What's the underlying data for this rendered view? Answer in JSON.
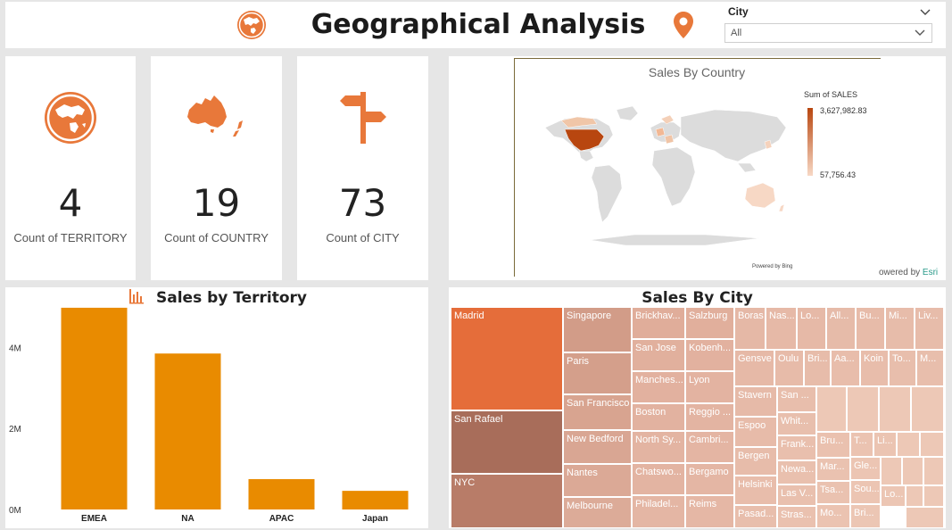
{
  "header": {
    "title": "Geographical Analysis",
    "slicer_label": "City",
    "slicer_value": "All"
  },
  "kpis": [
    {
      "value": "4",
      "label": "Count of TERRITORY",
      "icon": "globe-icon"
    },
    {
      "value": "19",
      "label": "Count of COUNTRY",
      "icon": "australia-map-icon"
    },
    {
      "value": "73",
      "label": "Count of CITY",
      "icon": "signpost-icon"
    }
  ],
  "map": {
    "title": "Sales By Country",
    "legend_title": "Sum of SALES",
    "legend_max": "3,627,982.83",
    "legend_min": "57,756.43",
    "credit_bing": "Powered by Bing",
    "credit_esri_prefix": "owered by",
    "credit_esri_brand": "Esri"
  },
  "colors": {
    "accent": "#e98b00",
    "icon_orange": "#e8783a",
    "map_dark": "#b8460f",
    "map_light": "#f7d8c5"
  },
  "chart_data": {
    "type": "bar",
    "title": "Sales by Territory",
    "categories": [
      "EMEA",
      "NA",
      "APAC",
      "Japan"
    ],
    "values": [
      4980000,
      3850000,
      750000,
      460000
    ],
    "ytick_labels": [
      "0M",
      "2M",
      "4M"
    ],
    "ytick_values": [
      0,
      2000000,
      4000000
    ],
    "ylim": [
      0,
      5000000
    ],
    "color": "#e98b00"
  },
  "treemap": {
    "title": "Sales By City",
    "cells": [
      {
        "label": "Madrid",
        "color": "#e56d3a"
      },
      {
        "label": "San Rafael",
        "color": "#a86d5a"
      },
      {
        "label": "NYC",
        "color": "#b87c68"
      },
      {
        "label": "Singapore",
        "color": "#d29c88"
      },
      {
        "label": "Paris",
        "color": "#d49f8b"
      },
      {
        "label": "San Francisco",
        "color": "#d8a490"
      },
      {
        "label": "New Bedford",
        "color": "#d9a693"
      },
      {
        "label": "Nantes",
        "color": "#dba996"
      },
      {
        "label": "Melbourne",
        "color": "#dcab98"
      },
      {
        "label": "Brickhav...",
        "color": "#e0ad9a"
      },
      {
        "label": "San Jose",
        "color": "#e1b09d"
      },
      {
        "label": "Manches...",
        "color": "#e2b19f"
      },
      {
        "label": "Boston",
        "color": "#e2b2a0"
      },
      {
        "label": "North Sy...",
        "color": "#e3b4a2"
      },
      {
        "label": "Chatswo...",
        "color": "#e3b4a2"
      },
      {
        "label": "Philadel...",
        "color": "#e4b6a4"
      },
      {
        "label": "Salzburg",
        "color": "#e1af9c"
      },
      {
        "label": "Kobenh...",
        "color": "#e2b19f"
      },
      {
        "label": "Lyon",
        "color": "#e3b3a1"
      },
      {
        "label": "Reggio ...",
        "color": "#e3b4a2"
      },
      {
        "label": "Cambri...",
        "color": "#e4b5a3"
      },
      {
        "label": "Bergamo",
        "color": "#e4b6a4"
      },
      {
        "label": "Reims",
        "color": "#e5b7a5"
      },
      {
        "label": "Boras",
        "color": "#e5b8a6"
      },
      {
        "label": "Nas...",
        "color": "#e6b9a7"
      },
      {
        "label": "Lo...",
        "color": "#e6b9a7"
      },
      {
        "label": "All...",
        "color": "#e6bba9"
      },
      {
        "label": "Bu...",
        "color": "#e7bba9"
      },
      {
        "label": "Mi...",
        "color": "#e7bcaa"
      },
      {
        "label": "Liv...",
        "color": "#e7bcaa"
      },
      {
        "label": "Gensve",
        "color": "#e6b9a7"
      },
      {
        "label": "Oulu",
        "color": "#e7bba9"
      },
      {
        "label": "Bri...",
        "color": "#e7bcaa"
      },
      {
        "label": "Aa...",
        "color": "#e8bdab"
      },
      {
        "label": "Koin",
        "color": "#e8bdab"
      },
      {
        "label": "To...",
        "color": "#e8beac"
      },
      {
        "label": "M...",
        "color": "#e8beac"
      },
      {
        "label": "Stavern",
        "color": "#e6baa8"
      },
      {
        "label": "Espoo",
        "color": "#e7bba9"
      },
      {
        "label": "Bergen",
        "color": "#e7bcaa"
      },
      {
        "label": "Helsinki",
        "color": "#e8bdab"
      },
      {
        "label": "Pasad...",
        "color": "#e8beac"
      },
      {
        "label": "San ...",
        "color": "#e8beac"
      },
      {
        "label": "Whit...",
        "color": "#e8bfad"
      },
      {
        "label": "Frank...",
        "color": "#e9bfad"
      },
      {
        "label": "Newa...",
        "color": "#e9c0ae"
      },
      {
        "label": "Las V...",
        "color": "#e9c0ae"
      },
      {
        "label": "Stras...",
        "color": "#eac1af"
      },
      {
        "label": "Bru...",
        "color": "#eac1af"
      },
      {
        "label": "Mar...",
        "color": "#eac2b0"
      },
      {
        "label": "Tsa...",
        "color": "#eac2b0"
      },
      {
        "label": "Mo...",
        "color": "#ebc3b1"
      },
      {
        "label": "T...",
        "color": "#ebc3b1"
      },
      {
        "label": "Li...",
        "color": "#ebc4b2"
      },
      {
        "label": "Ver...",
        "color": "#ebc4b2"
      },
      {
        "label": "Gle...",
        "color": "#ecc5b3"
      },
      {
        "label": "Sou...",
        "color": "#ecc5b3"
      },
      {
        "label": "Bri...",
        "color": "#ecc6b4"
      },
      {
        "label": "Lo...",
        "color": "#ecc6b4"
      }
    ]
  }
}
